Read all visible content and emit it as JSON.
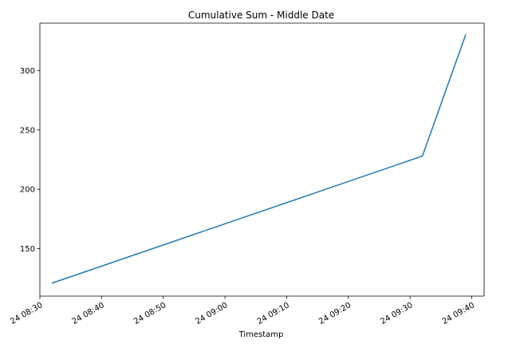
{
  "chart_data": {
    "type": "line",
    "title": "Cumulative Sum - Middle Date",
    "xlabel": "Timestamp",
    "ylabel": "",
    "x": [
      "24 08:32",
      "24 09:32",
      "24 09:39"
    ],
    "series": [
      {
        "values": [
          121,
          228,
          330
        ],
        "color": "#1f77b4"
      }
    ],
    "xlim": [
      "24 08:30",
      "24 09:42"
    ],
    "ylim": [
      110,
      340
    ],
    "x_ticks": [
      "24 08:30",
      "24 08:40",
      "24 08:50",
      "24 09:00",
      "24 09:10",
      "24 09:20",
      "24 09:30",
      "24 09:40"
    ],
    "y_ticks": [
      150,
      200,
      250,
      300
    ],
    "grid": false,
    "legend": "none"
  }
}
